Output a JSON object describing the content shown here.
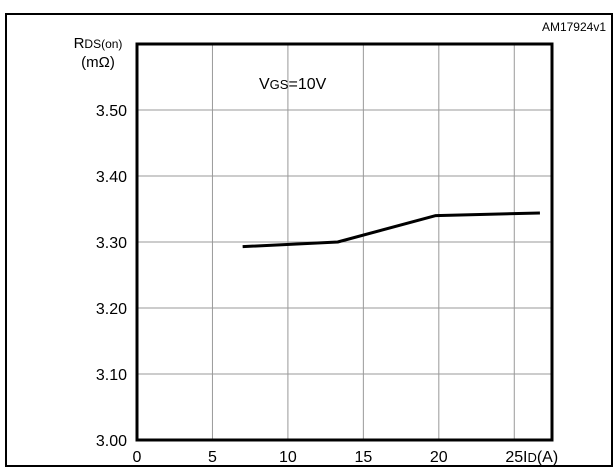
{
  "figure_id": "AM17924v1",
  "chart_data": {
    "type": "line",
    "title": "",
    "annotation": {
      "main": "V",
      "sub": "GS",
      "rest": "=10V"
    },
    "ylabel": {
      "main": "R",
      "sub": "DS(on)",
      "unit": "(mΩ)"
    },
    "xlabel": {
      "main": "I",
      "sub": "D",
      "unit": "(A)"
    },
    "xlim": [
      0,
      27.5
    ],
    "ylim": [
      3.0,
      3.6
    ],
    "x_ticks": [
      0,
      5,
      10,
      15,
      20,
      25
    ],
    "y_ticks": [
      3.0,
      3.1,
      3.2,
      3.3,
      3.4,
      3.5
    ],
    "y_tick_labels": [
      "3.00",
      "3.10",
      "3.20",
      "3.30",
      "3.40",
      "3.50"
    ],
    "grid": true,
    "series": [
      {
        "x": [
          7,
          13.3,
          19.8,
          26.7
        ],
        "y": [
          3.293,
          3.3,
          3.34,
          3.344
        ]
      }
    ],
    "line_color": "#000000"
  }
}
